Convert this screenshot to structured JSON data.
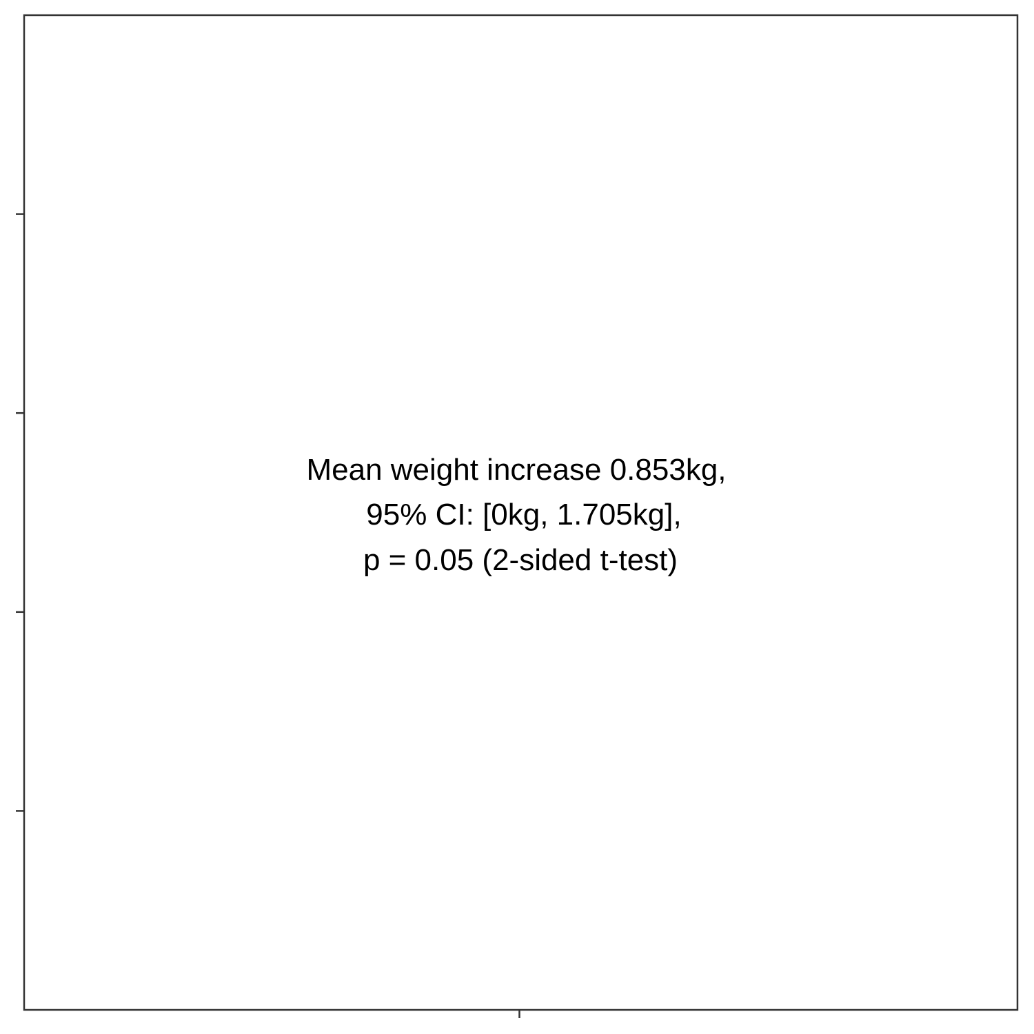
{
  "chart_data": {
    "type": "scatter",
    "title": "",
    "xlabel": "",
    "ylabel": "",
    "x_ticks": [
      ""
    ],
    "y_ticks": [
      "",
      "",
      "",
      ""
    ],
    "grid": false,
    "legend": "none",
    "series": [],
    "annotation": {
      "lines": [
        "Mean weight increase 0.853kg,",
        "95% CI: [0kg, 1.705kg],",
        "p = 0.05 (2-sided t-test)"
      ]
    },
    "colors": {
      "background": "#ffffff",
      "frame": "#333333",
      "text": "#000000"
    }
  }
}
